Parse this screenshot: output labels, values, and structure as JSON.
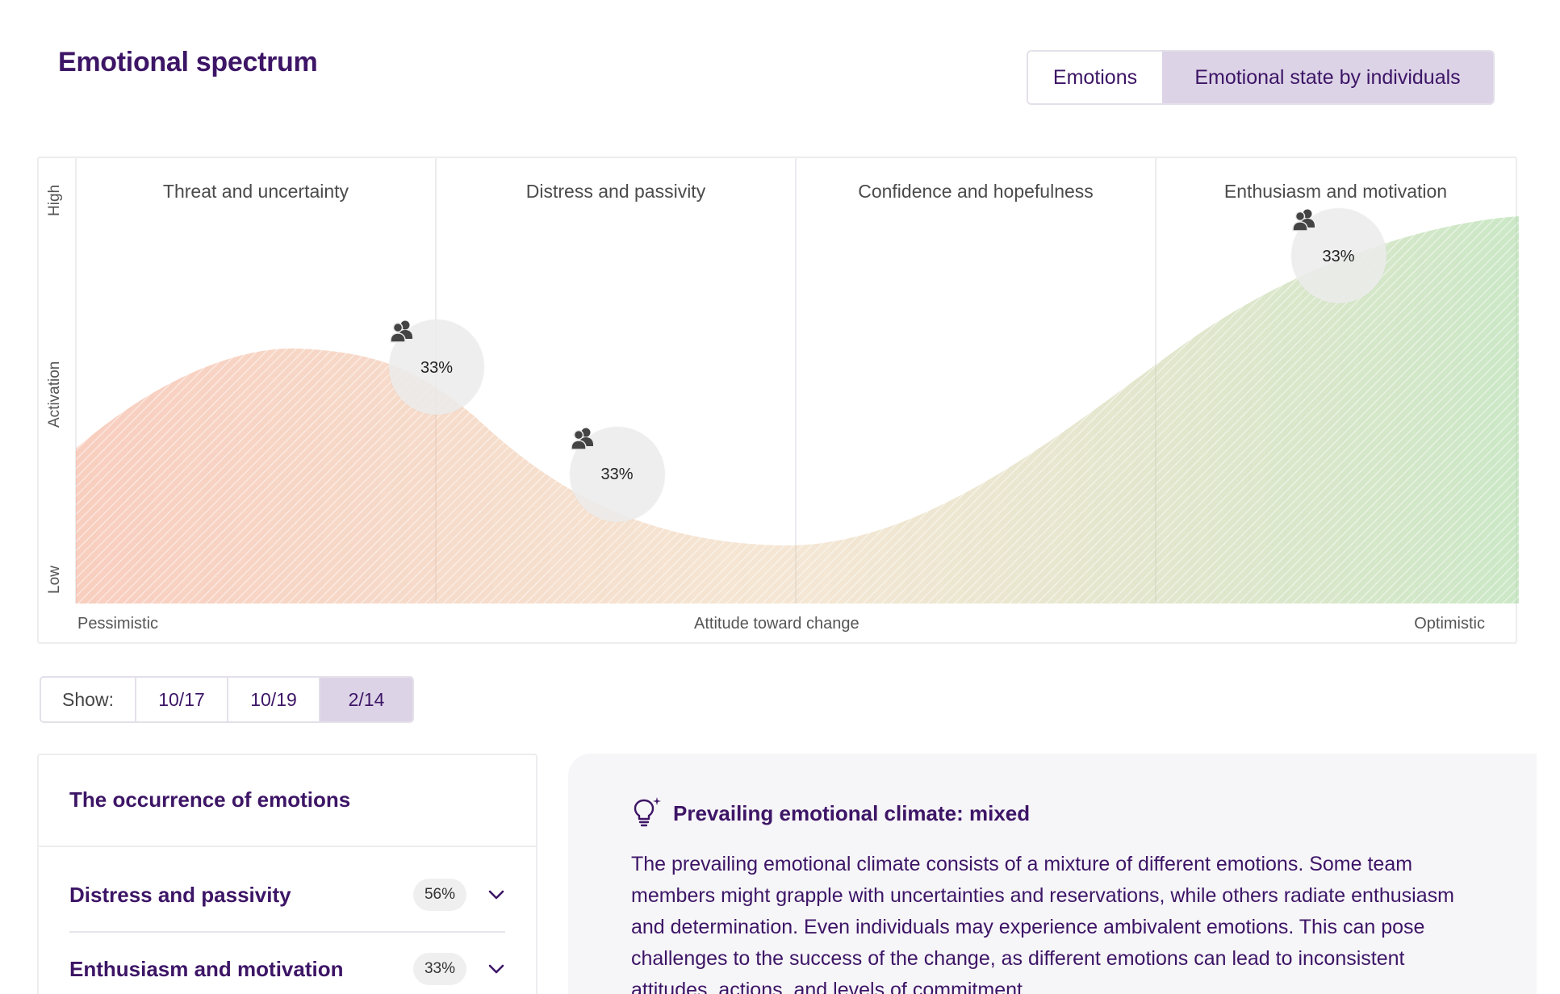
{
  "header": {
    "title": "Emotional spectrum",
    "view_toggle": {
      "emotions_label": "Emotions",
      "state_label": "Emotional state by individuals",
      "active": "state"
    }
  },
  "chart": {
    "y_high": "High",
    "y_axis": "Activation",
    "y_low": "Low",
    "x_left": "Pessimistic",
    "x_axis": "Attitude toward change",
    "x_right": "Optimistic",
    "quadrants": [
      "Threat and uncertainty",
      "Distress and passivity",
      "Confidence and hopefulness",
      "Enthusiasm and motivation"
    ],
    "gradient_colors": [
      "#f3a58a",
      "#e8c9a0",
      "#a8d8a0"
    ],
    "group_icon": "people-icon",
    "bubbles": [
      {
        "label": "33%",
        "attitude": 0.25,
        "activation": 0.53
      },
      {
        "label": "33%",
        "attitude": 0.375,
        "activation": 0.29
      },
      {
        "label": "33%",
        "attitude": 0.875,
        "activation": 0.78
      }
    ]
  },
  "show_filter": {
    "label": "Show:",
    "dates": [
      "10/17",
      "10/19",
      "2/14"
    ],
    "active_index": 2
  },
  "occurrence": {
    "title": "The occurrence of emotions",
    "items": [
      {
        "name": "Distress and passivity",
        "percent": "56%"
      },
      {
        "name": "Enthusiasm and motivation",
        "percent": "33%"
      }
    ]
  },
  "insight": {
    "icon": "lightbulb-sparkle-icon",
    "title": "Prevailing emotional climate: mixed",
    "body": "The prevailing emotional climate consists of a mixture of different emotions. Some team members might grapple with uncertainties and reservations, while others radiate enthusiasm and determination. Even individuals may experience ambivalent emotions. This can pose challenges to the success of the change, as different emotions can lead to inconsistent attitudes, actions, and levels of commitment."
  }
}
